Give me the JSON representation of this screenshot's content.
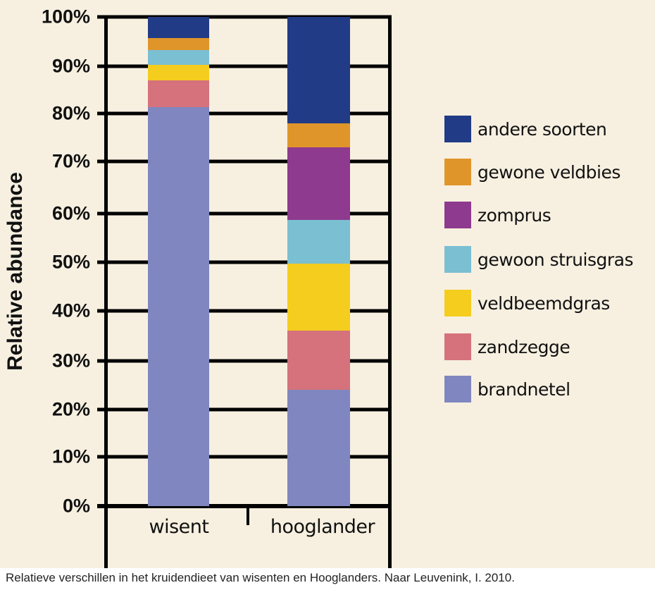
{
  "chart_data": {
    "type": "bar",
    "stacked": true,
    "title": "",
    "xlabel": "",
    "ylabel": "Relative abundance",
    "ylim": [
      0,
      100
    ],
    "yticks": [
      "0%",
      "10%",
      "20%",
      "30%",
      "40%",
      "50%",
      "60%",
      "70%",
      "80%",
      "90%",
      "100%"
    ],
    "grid": true,
    "legend_position": "right",
    "categories": [
      "wisent",
      "hooglander"
    ],
    "series": [
      {
        "name": "brandnetel",
        "color": "#7f86c0",
        "values": [
          81.3,
          24.1
        ]
      },
      {
        "name": "zandzegge",
        "color": "#d5727b",
        "values": [
          5.7,
          12.0
        ]
      },
      {
        "name": "veldbeemdgras",
        "color": "#f4cd1e",
        "values": [
          3.3,
          13.6
        ]
      },
      {
        "name": "gewoon struisgras",
        "color": "#7bbfd2",
        "values": [
          3.0,
          9.0
        ]
      },
      {
        "name": "zomprus",
        "color": "#8e3a8e",
        "values": [
          0.0,
          14.2
        ]
      },
      {
        "name": "gewone veldbies",
        "color": "#e0952a",
        "values": [
          2.4,
          5.0
        ]
      },
      {
        "name": "andere soorten",
        "color": "#213b86",
        "values": [
          4.3,
          22.1
        ]
      }
    ],
    "legend_order": [
      "andere soorten",
      "gewone veldbies",
      "zomprus",
      "gewoon struisgras",
      "veldbeemdgras",
      "zandzegge",
      "brandnetel"
    ]
  },
  "caption": "Relatieve verschillen in het kruidendieet van wisenten en Hooglanders. Naar Leuvenink, I. 2010.",
  "colors": {
    "background": "#f7f0e1",
    "axis": "#000000",
    "caption_background": "#ffffff"
  }
}
